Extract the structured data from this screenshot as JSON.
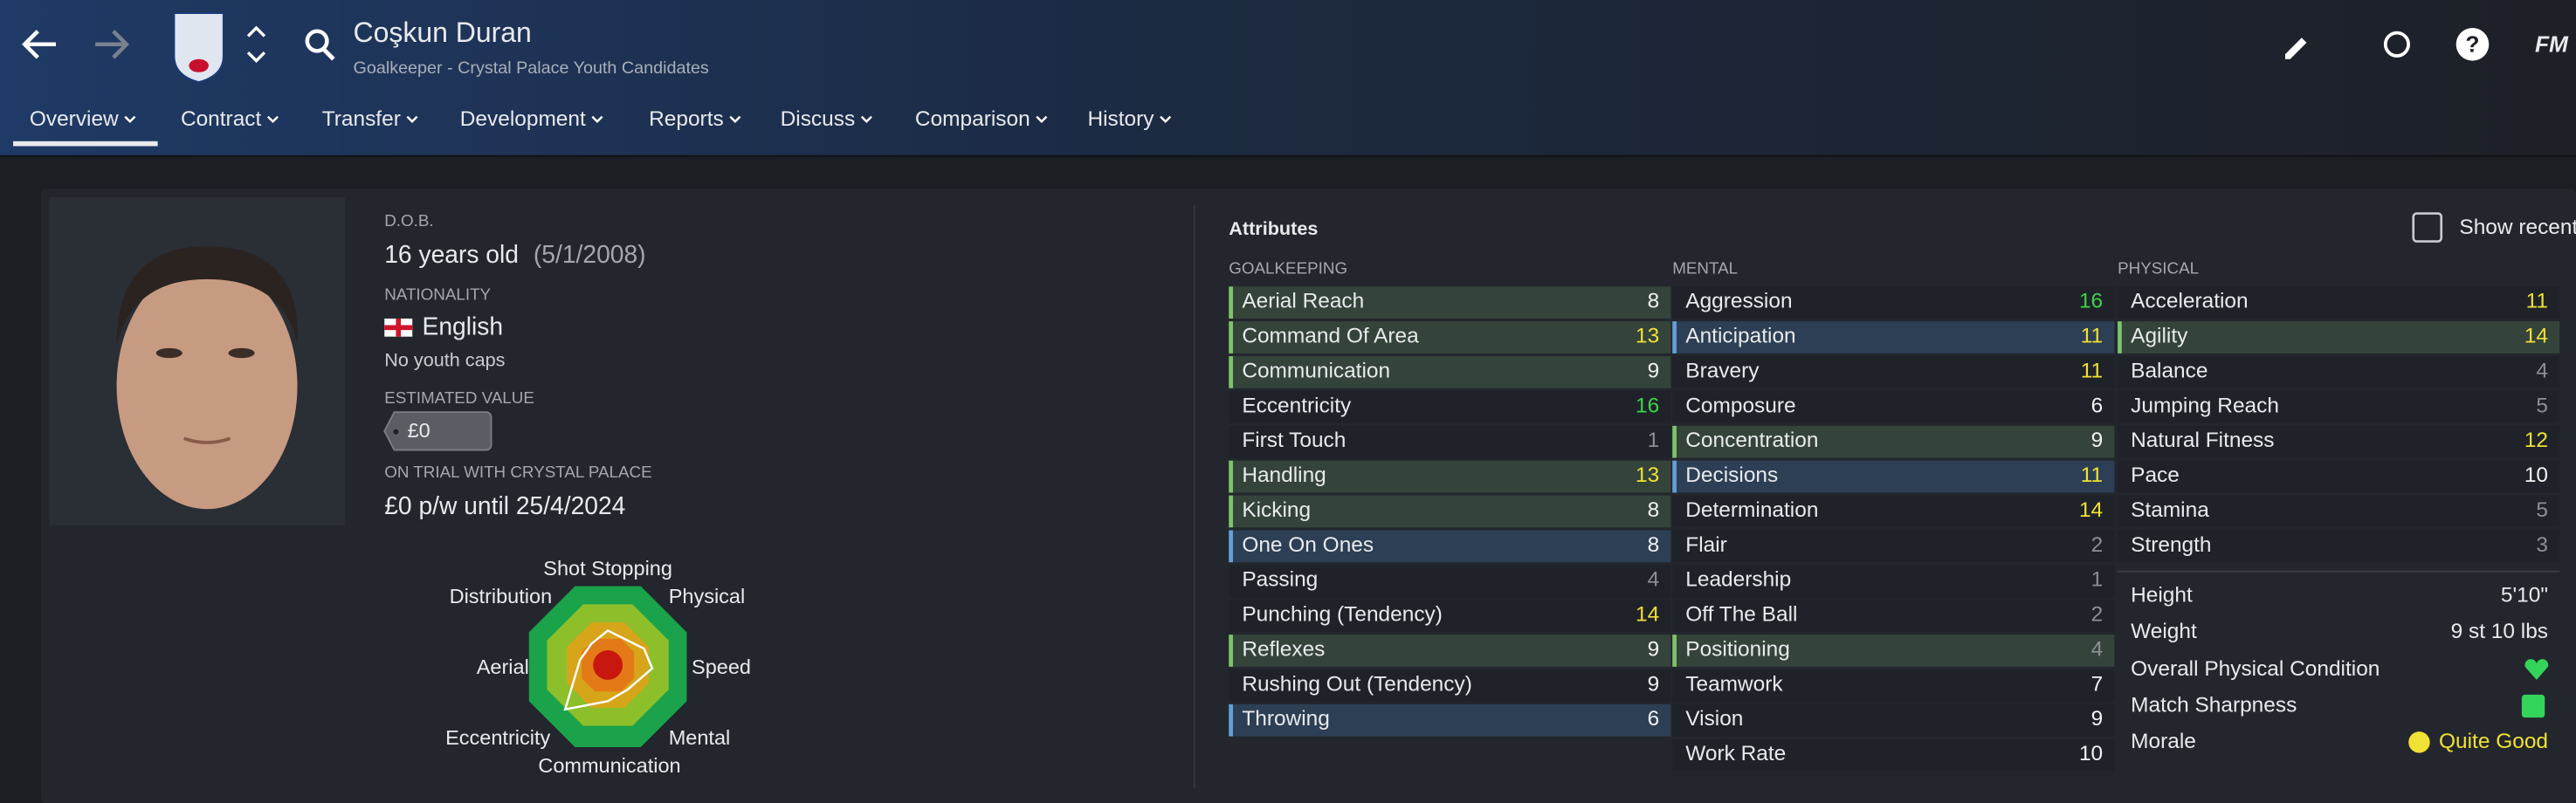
{
  "header": {
    "name": "Coşkun Duran",
    "subtitle": "Goalkeeper - Crystal Palace Youth Candidates",
    "brand": "FM",
    "tabs": [
      "Overview",
      "Contract",
      "Transfer",
      "Development",
      "Reports",
      "Discuss",
      "Comparison",
      "History"
    ]
  },
  "profile": {
    "dob_label": "D.O.B.",
    "dob": "16 years old",
    "dob_date": "(5/1/2008)",
    "nationality_label": "NATIONALITY",
    "nationality": "English",
    "youth_caps": "No youth caps",
    "value_label": "ESTIMATED VALUE",
    "value": "£0",
    "trial_label": "ON TRIAL WITH CRYSTAL PALACE",
    "trial": "£0 p/w until 25/4/2024"
  },
  "radar": {
    "labels": [
      "Shot Stopping",
      "Physical",
      "Speed",
      "Mental",
      "Communication",
      "Eccentricity",
      "Aerial",
      "Distribution"
    ]
  },
  "attributes": {
    "title": "Attributes",
    "show_recent": "Show recent",
    "columns": [
      {
        "title": "GOALKEEPING",
        "rows": [
          {
            "name": "Aerial Reach",
            "value": "8",
            "highlight": "green"
          },
          {
            "name": "Command Of Area",
            "value": "13",
            "highlight": "green"
          },
          {
            "name": "Communication",
            "value": "9",
            "highlight": "green"
          },
          {
            "name": "Eccentricity",
            "value": "16",
            "highlight": "none"
          },
          {
            "name": "First Touch",
            "value": "1",
            "highlight": "none"
          },
          {
            "name": "Handling",
            "value": "13",
            "highlight": "green"
          },
          {
            "name": "Kicking",
            "value": "8",
            "highlight": "green"
          },
          {
            "name": "One On Ones",
            "value": "8",
            "highlight": "blue"
          },
          {
            "name": "Passing",
            "value": "4",
            "highlight": "none"
          },
          {
            "name": "Punching (Tendency)",
            "value": "14",
            "highlight": "none"
          },
          {
            "name": "Reflexes",
            "value": "9",
            "highlight": "green"
          },
          {
            "name": "Rushing Out (Tendency)",
            "value": "9",
            "highlight": "none"
          },
          {
            "name": "Throwing",
            "value": "6",
            "highlight": "blue"
          }
        ]
      },
      {
        "title": "MENTAL",
        "rows": [
          {
            "name": "Aggression",
            "value": "16",
            "highlight": "none"
          },
          {
            "name": "Anticipation",
            "value": "11",
            "highlight": "blue"
          },
          {
            "name": "Bravery",
            "value": "11",
            "highlight": "none"
          },
          {
            "name": "Composure",
            "value": "6",
            "highlight": "none"
          },
          {
            "name": "Concentration",
            "value": "9",
            "highlight": "green"
          },
          {
            "name": "Decisions",
            "value": "11",
            "highlight": "blue"
          },
          {
            "name": "Determination",
            "value": "14",
            "highlight": "none"
          },
          {
            "name": "Flair",
            "value": "2",
            "highlight": "none"
          },
          {
            "name": "Leadership",
            "value": "1",
            "highlight": "none"
          },
          {
            "name": "Off The Ball",
            "value": "2",
            "highlight": "none"
          },
          {
            "name": "Positioning",
            "value": "4",
            "highlight": "green"
          },
          {
            "name": "Teamwork",
            "value": "7",
            "highlight": "none"
          },
          {
            "name": "Vision",
            "value": "9",
            "highlight": "none"
          },
          {
            "name": "Work Rate",
            "value": "10",
            "highlight": "none"
          }
        ]
      },
      {
        "title": "PHYSICAL",
        "rows": [
          {
            "name": "Acceleration",
            "value": "11",
            "highlight": "none"
          },
          {
            "name": "Agility",
            "value": "14",
            "highlight": "green"
          },
          {
            "name": "Balance",
            "value": "4",
            "highlight": "none"
          },
          {
            "name": "Jumping Reach",
            "value": "5",
            "highlight": "none"
          },
          {
            "name": "Natural Fitness",
            "value": "12",
            "highlight": "none"
          },
          {
            "name": "Pace",
            "value": "10",
            "highlight": "none"
          },
          {
            "name": "Stamina",
            "value": "5",
            "highlight": "none"
          },
          {
            "name": "Strength",
            "value": "3",
            "highlight": "none"
          }
        ]
      }
    ],
    "info": [
      {
        "name": "Height",
        "value": "5'10\""
      },
      {
        "name": "Weight",
        "value": "9 st 10 lbs"
      },
      {
        "name": "Overall Physical Condition"
      },
      {
        "name": "Match Sharpness"
      },
      {
        "name": "Morale",
        "value": "Quite Good"
      }
    ]
  }
}
